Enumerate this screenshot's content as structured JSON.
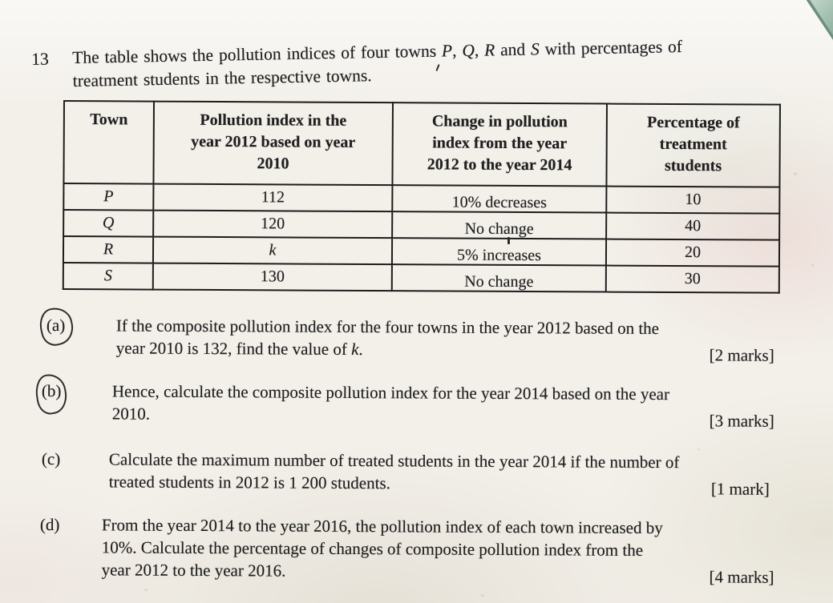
{
  "colors": {
    "paper": "#f3f0ea",
    "ink": "#1f1f1f",
    "table_border": "#1c1c1c",
    "corner_teal": "#97b9a7"
  },
  "document": {
    "question_number": "13",
    "intro": {
      "line1": [
        {
          "t": "The table shows the pollution indices of four towns ",
          "i": false
        },
        {
          "t": "P",
          "i": true
        },
        {
          "t": ", ",
          "i": false
        },
        {
          "t": "Q",
          "i": true
        },
        {
          "t": ", ",
          "i": false
        },
        {
          "t": "R",
          "i": true
        },
        {
          "t": " and ",
          "i": false
        },
        {
          "t": "S",
          "i": true
        },
        {
          "t": " with percentages of",
          "i": false
        }
      ],
      "line2": [
        {
          "t": "treatment students in the respective towns.",
          "i": false
        }
      ]
    },
    "table": {
      "headers": [
        {
          "lines": [
            "Town"
          ]
        },
        {
          "lines": [
            "Pollution index in the",
            "year 2012 based on year",
            "2010"
          ]
        },
        {
          "lines": [
            "Change in pollution",
            "index from the year",
            "2012 to the year 2014"
          ]
        },
        {
          "lines": [
            "Percentage of",
            "treatment",
            "students"
          ]
        }
      ],
      "rows": [
        {
          "town": "P",
          "index": "112",
          "change": "10% decreases",
          "percentage": "10"
        },
        {
          "town": "Q",
          "index": "120",
          "change": "No change",
          "percentage": "40"
        },
        {
          "town": "R",
          "index": "k",
          "change": "5% increases",
          "percentage": "20"
        },
        {
          "town": "S",
          "index": "130",
          "change": "No change",
          "percentage": "30"
        }
      ]
    },
    "parts": [
      {
        "label": "(a)",
        "pen_circled": true,
        "lines": [
          [
            {
              "t": "If the composite pollution index for the four towns in the year 2012 based on the",
              "i": false
            }
          ],
          [
            {
              "t": "year 2010 is 132, find the value of ",
              "i": false
            },
            {
              "t": "k",
              "i": true
            },
            {
              "t": ".",
              "i": false
            }
          ]
        ],
        "marks": "[2 marks]"
      },
      {
        "label": "(b)",
        "pen_circled": true,
        "lines": [
          [
            {
              "t": "Hence, calculate the composite pollution index for the year 2014 based on the year",
              "i": false
            }
          ],
          [
            {
              "t": "2010.",
              "i": false
            }
          ]
        ],
        "marks": "[3 marks]"
      },
      {
        "label": "(c)",
        "pen_circled": false,
        "lines": [
          [
            {
              "t": "Calculate the maximum number of treated students in the year 2014 if the number of",
              "i": false
            }
          ],
          [
            {
              "t": "treated students in 2012 is 1 200 students.",
              "i": false
            }
          ]
        ],
        "marks": "[1 mark]"
      },
      {
        "label": "(d)",
        "pen_circled": false,
        "lines": [
          [
            {
              "t": "From the year 2014 to the year 2016, the pollution index of each town increased by",
              "i": false
            }
          ],
          [
            {
              "t": "10%. Calculate the percentage of changes of composite pollution index from the",
              "i": false
            }
          ],
          [
            {
              "t": "year 2012 to the year 2016.",
              "i": false
            }
          ]
        ],
        "marks": "[4 marks]"
      }
    ]
  }
}
